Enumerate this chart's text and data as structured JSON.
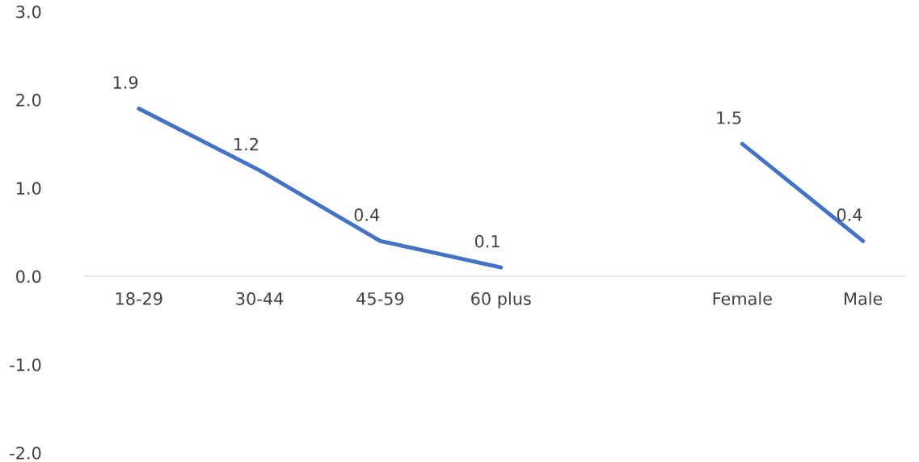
{
  "chart_data": {
    "type": "line",
    "categories": [
      "18-29",
      "30-44",
      "45-59",
      "60 plus",
      null,
      "Female",
      "Male"
    ],
    "series": [
      {
        "color": "#4472c4",
        "values": [
          1.9,
          1.2,
          0.4,
          0.1,
          null,
          1.5,
          0.4
        ]
      }
    ],
    "ylim": [
      -2,
      3
    ],
    "yticks": [
      {
        "value": -2,
        "label": "-2.0"
      },
      {
        "value": -1,
        "label": "-1.0"
      },
      {
        "value": 0,
        "label": "0.0"
      },
      {
        "value": 1,
        "label": "1.0"
      },
      {
        "value": 2,
        "label": "2.0"
      },
      {
        "value": 3,
        "label": "3.0"
      }
    ],
    "data_labels": true,
    "grid": false,
    "legend": false,
    "marker": "none",
    "line_style": "solid"
  }
}
